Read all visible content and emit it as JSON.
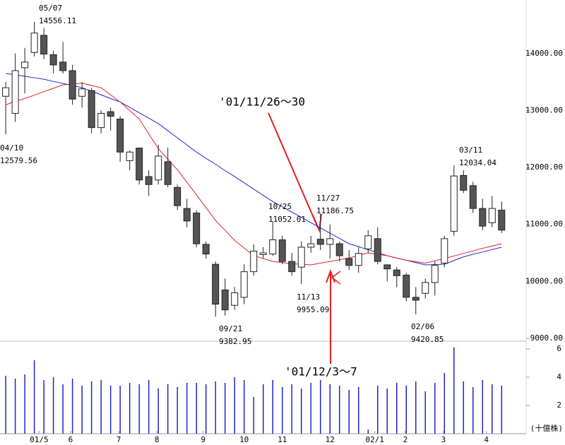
{
  "chart_data": {
    "type": "candlestick",
    "xlim": [
      -0.6,
      54.2
    ],
    "xticks": [
      {
        "value": 3.5,
        "label": "01/5"
      },
      {
        "value": 6.8,
        "label": "6"
      },
      {
        "value": 11.85,
        "label": "7"
      },
      {
        "value": 15.85,
        "label": "8"
      },
      {
        "value": 20.7,
        "label": "9"
      },
      {
        "value": 25,
        "label": "10"
      },
      {
        "value": 29,
        "label": "11"
      },
      {
        "value": 34,
        "label": "12"
      },
      {
        "value": 38.7,
        "label": "02/1"
      },
      {
        "value": 41.9,
        "label": "2"
      },
      {
        "value": 45.9,
        "label": "3"
      },
      {
        "value": 50.4,
        "label": "4"
      }
    ],
    "ylim": [
      8950,
      14940
    ],
    "yticks": [
      {
        "value": 14000,
        "label": "14000.00"
      },
      {
        "value": 13000,
        "label": "13000.00"
      },
      {
        "value": 12000,
        "label": "12000.00"
      },
      {
        "value": 11000,
        "label": "11000.00"
      },
      {
        "value": 10000,
        "label": "10000.00"
      },
      {
        "value": 9000,
        "label": "9000.00"
      }
    ],
    "up_color": "#ffffff",
    "down_color": "#555555",
    "open": [
      13250,
      12950,
      13750,
      14020,
      14320,
      13980,
      13850,
      13700,
      13250,
      13350,
      12700,
      12980,
      12850,
      12120,
      12340,
      11840,
      11780,
      12100,
      11650,
      11280,
      11200,
      10650,
      10300,
      9850,
      9580,
      9720,
      10170,
      10470,
      10480,
      10730,
      10350,
      10250,
      10600,
      10740,
      10650,
      10660,
      10400,
      10280,
      10570,
      10750,
      10290,
      10200,
      10110,
      9720,
      9790,
      9980,
      10320,
      10880,
      11860,
      11680,
      11280,
      11030,
      11250
    ],
    "high": [
      13500,
      14000,
      14100,
      14556.11,
      14450,
      14050,
      14200,
      13800,
      13500,
      13400,
      13000,
      13050,
      12900,
      12300,
      12350,
      11950,
      12400,
      12350,
      11700,
      11450,
      11250,
      10700,
      10350,
      10050,
      9900,
      10300,
      10650,
      10600,
      11052.01,
      10800,
      10500,
      10700,
      10800,
      11186.75,
      11000,
      10700,
      10550,
      10600,
      10900,
      10950,
      10300,
      10250,
      10150,
      9900,
      10050,
      10350,
      10800,
      12034.04,
      11950,
      11750,
      11450,
      11500,
      11400
    ],
    "low": [
      12579.56,
      12800,
      13300,
      13950,
      13900,
      13650,
      13650,
      13100,
      13050,
      12600,
      12600,
      12650,
      12100,
      11950,
      11700,
      11500,
      11700,
      11650,
      11250,
      10950,
      10600,
      10400,
      9382.95,
      9400,
      9500,
      9600,
      10100,
      10400,
      10450,
      10300,
      10100,
      9955.09,
      10500,
      10550,
      10400,
      10350,
      10200,
      10150,
      10500,
      10300,
      10000,
      9900,
      9650,
      9420.85,
      9700,
      9750,
      10250,
      10800,
      11550,
      11200,
      10900,
      10950,
      10850
    ],
    "close": [
      13400,
      13700,
      13850,
      14360,
      13990,
      13800,
      13700,
      13200,
      13380,
      12700,
      12950,
      12900,
      12270,
      12270,
      11780,
      11700,
      12200,
      11700,
      11330,
      11060,
      10660,
      10480,
      9600,
      9500,
      9800,
      10170,
      10530,
      10500,
      10730,
      10350,
      10170,
      10600,
      10660,
      10650,
      10750,
      10450,
      10280,
      10490,
      10800,
      10350,
      10220,
      10100,
      9720,
      9670,
      9980,
      10280,
      10750,
      11850,
      11600,
      11280,
      10970,
      11280,
      10900
    ],
    "series": [
      {
        "color": "#2222dd",
        "values": [
          13650,
          13625,
          13600,
          13575,
          13550,
          13510,
          13475,
          13440,
          13400,
          13340,
          13275,
          13210,
          13150,
          13055,
          12960,
          12865,
          12770,
          12645,
          12520,
          12395,
          12270,
          12160,
          12055,
          11945,
          11840,
          11730,
          11620,
          11510,
          11400,
          11310,
          11215,
          11125,
          11030,
          10940,
          10845,
          10755,
          10660,
          10610,
          10555,
          10505,
          10450,
          10410,
          10370,
          10330,
          10290,
          10295,
          10300,
          10365,
          10430,
          10475,
          10515,
          10560,
          10600
        ]
      },
      {
        "color": "#dd2222",
        "values": [
          13100,
          13160,
          13210,
          13270,
          13330,
          13390,
          13450,
          13465,
          13480,
          13440,
          13400,
          13275,
          13150,
          13000,
          12850,
          12590,
          12330,
          12145,
          11960,
          11740,
          11520,
          11295,
          11070,
          10895,
          10720,
          10585,
          10450,
          10400,
          10350,
          10330,
          10310,
          10300,
          10290,
          10320,
          10350,
          10380,
          10410,
          10455,
          10500,
          10475,
          10450,
          10410,
          10370,
          10345,
          10320,
          10360,
          10400,
          10445,
          10490,
          10535,
          10580,
          10620,
          10660
        ]
      }
    ],
    "volume": {
      "color": "#2222cc",
      "ylim": [
        0,
        6.2
      ],
      "yticks": [
        6,
        4,
        2
      ],
      "unit_label": "(十億株)",
      "values": [
        4.1,
        3.9,
        4.2,
        5.2,
        3.8,
        4.0,
        3.5,
        3.9,
        3.4,
        3.7,
        3.8,
        3.4,
        3.4,
        3.6,
        3.5,
        3.8,
        3.2,
        3.5,
        3.3,
        3.6,
        3.6,
        3.5,
        3.7,
        3.6,
        4.0,
        3.8,
        2.6,
        3.5,
        3.8,
        3.3,
        3.5,
        3.2,
        3.6,
        3.8,
        3.5,
        3.4,
        3.1,
        3.3,
        0.3,
        3.4,
        3.2,
        3.6,
        3.4,
        3.7,
        3.0,
        3.6,
        4.3,
        6.1,
        3.7,
        3.3,
        3.8,
        3.5,
        3.4
      ]
    },
    "annotations": [
      {
        "date": "05/07",
        "value": 14556.11
      },
      {
        "date": "04/10",
        "value": 12579.56
      },
      {
        "date": "09/21",
        "value": 9382.95
      },
      {
        "date": "10/25",
        "value": 11052.01
      },
      {
        "date": "11/13",
        "value": 9955.09
      },
      {
        "date": "11/27",
        "value": 11186.75
      },
      {
        "date": "02/06",
        "value": 9420.85
      },
      {
        "date": "03/11",
        "value": 12034.04
      }
    ],
    "callouts": [
      "'01/11/26～30",
      "'01/12/3～7"
    ]
  }
}
